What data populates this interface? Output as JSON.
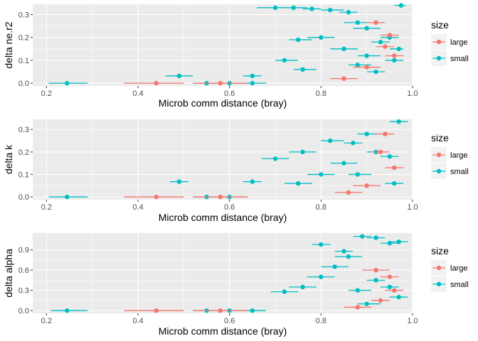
{
  "colors": {
    "large": "#F8766D",
    "small": "#00BFC4",
    "panel_bg": "#EBEBEB",
    "grid": "#FFFFFF"
  },
  "legend": {
    "title": "size",
    "entries": [
      "large",
      "small"
    ]
  },
  "chart_data": [
    {
      "type": "scatter",
      "xlabel": "Microb comm distance (bray)",
      "ylabel": "delta ne.r2",
      "xlim": [
        0.17,
        1.0
      ],
      "ylim": [
        -0.012,
        0.345
      ],
      "xticks": [
        0.2,
        0.4,
        0.6,
        0.8,
        1.0
      ],
      "xtick_labels": [
        "0.2",
        "0.4",
        "0.6",
        "0.8",
        "1.0"
      ],
      "yticks": [
        0.0,
        0.1,
        0.2,
        0.3
      ],
      "ytick_labels": [
        "0.0",
        "0.1",
        "0.2",
        "0.3"
      ],
      "series": [
        {
          "name": "small",
          "points": [
            {
              "x": 0.245,
              "xmin": 0.205,
              "xmax": 0.29,
              "y": 0.0
            },
            {
              "x": 0.49,
              "xmin": 0.46,
              "xmax": 0.52,
              "y": 0.032
            },
            {
              "x": 0.65,
              "xmin": 0.63,
              "xmax": 0.67,
              "y": 0.032
            },
            {
              "x": 0.7,
              "xmin": 0.66,
              "xmax": 0.74,
              "y": 0.33
            },
            {
              "x": 0.74,
              "xmin": 0.72,
              "xmax": 0.77,
              "y": 0.33
            },
            {
              "x": 0.78,
              "xmin": 0.76,
              "xmax": 0.8,
              "y": 0.325
            },
            {
              "x": 0.82,
              "xmin": 0.8,
              "xmax": 0.85,
              "y": 0.32
            },
            {
              "x": 0.86,
              "xmin": 0.84,
              "xmax": 0.88,
              "y": 0.31
            },
            {
              "x": 0.88,
              "xmin": 0.85,
              "xmax": 0.9,
              "y": 0.265
            },
            {
              "x": 0.9,
              "xmin": 0.87,
              "xmax": 0.93,
              "y": 0.24
            },
            {
              "x": 0.8,
              "xmin": 0.77,
              "xmax": 0.83,
              "y": 0.2
            },
            {
              "x": 0.75,
              "xmin": 0.73,
              "xmax": 0.78,
              "y": 0.19
            },
            {
              "x": 0.72,
              "xmin": 0.7,
              "xmax": 0.75,
              "y": 0.1
            },
            {
              "x": 0.76,
              "xmin": 0.74,
              "xmax": 0.79,
              "y": 0.06
            },
            {
              "x": 0.55,
              "xmin": 0.52,
              "xmax": 0.58,
              "y": 0.0
            },
            {
              "x": 0.6,
              "xmin": 0.57,
              "xmax": 0.63,
              "y": 0.0
            },
            {
              "x": 0.65,
              "xmin": 0.62,
              "xmax": 0.68,
              "y": 0.0
            },
            {
              "x": 0.85,
              "xmin": 0.82,
              "xmax": 0.88,
              "y": 0.15
            },
            {
              "x": 0.9,
              "xmin": 0.88,
              "xmax": 0.93,
              "y": 0.12
            },
            {
              "x": 0.93,
              "xmin": 0.91,
              "xmax": 0.95,
              "y": 0.18
            },
            {
              "x": 0.95,
              "xmin": 0.93,
              "xmax": 0.97,
              "y": 0.2
            },
            {
              "x": 0.97,
              "xmin": 0.95,
              "xmax": 0.98,
              "y": 0.15
            },
            {
              "x": 0.975,
              "xmin": 0.96,
              "xmax": 0.985,
              "y": 0.34
            },
            {
              "x": 0.88,
              "xmin": 0.86,
              "xmax": 0.91,
              "y": 0.08
            },
            {
              "x": 0.92,
              "xmin": 0.9,
              "xmax": 0.94,
              "y": 0.05
            },
            {
              "x": 0.96,
              "xmin": 0.94,
              "xmax": 0.98,
              "y": 0.1
            }
          ]
        },
        {
          "name": "large",
          "points": [
            {
              "x": 0.44,
              "xmin": 0.37,
              "xmax": 0.5,
              "y": 0.0
            },
            {
              "x": 0.58,
              "xmin": 0.52,
              "xmax": 0.64,
              "y": 0.0
            },
            {
              "x": 0.92,
              "xmin": 0.9,
              "xmax": 0.94,
              "y": 0.265
            },
            {
              "x": 0.95,
              "xmin": 0.93,
              "xmax": 0.97,
              "y": 0.21
            },
            {
              "x": 0.94,
              "xmin": 0.92,
              "xmax": 0.96,
              "y": 0.16
            },
            {
              "x": 0.96,
              "xmin": 0.94,
              "xmax": 0.98,
              "y": 0.12
            },
            {
              "x": 0.9,
              "xmin": 0.87,
              "xmax": 0.93,
              "y": 0.07
            },
            {
              "x": 0.85,
              "xmin": 0.82,
              "xmax": 0.88,
              "y": 0.02
            }
          ]
        }
      ]
    },
    {
      "type": "scatter",
      "xlabel": "Microb comm distance (bray)",
      "ylabel": "delta k",
      "xlim": [
        0.17,
        1.0
      ],
      "ylim": [
        -0.012,
        0.345
      ],
      "xticks": [
        0.2,
        0.4,
        0.6,
        0.8,
        1.0
      ],
      "xtick_labels": [
        "0.2",
        "0.4",
        "0.6",
        "0.8",
        "1.0"
      ],
      "yticks": [
        0.0,
        0.1,
        0.2,
        0.3
      ],
      "ytick_labels": [
        "0.0",
        "0.1",
        "0.2",
        "0.3"
      ],
      "series": [
        {
          "name": "small",
          "points": [
            {
              "x": 0.245,
              "xmin": 0.205,
              "xmax": 0.29,
              "y": 0.0
            },
            {
              "x": 0.49,
              "xmin": 0.47,
              "xmax": 0.51,
              "y": 0.068
            },
            {
              "x": 0.65,
              "xmin": 0.63,
              "xmax": 0.67,
              "y": 0.068
            },
            {
              "x": 0.7,
              "xmin": 0.67,
              "xmax": 0.73,
              "y": 0.17
            },
            {
              "x": 0.76,
              "xmin": 0.73,
              "xmax": 0.79,
              "y": 0.2
            },
            {
              "x": 0.82,
              "xmin": 0.8,
              "xmax": 0.85,
              "y": 0.25
            },
            {
              "x": 0.87,
              "xmin": 0.85,
              "xmax": 0.89,
              "y": 0.24
            },
            {
              "x": 0.9,
              "xmin": 0.88,
              "xmax": 0.92,
              "y": 0.28
            },
            {
              "x": 0.97,
              "xmin": 0.95,
              "xmax": 0.99,
              "y": 0.335
            },
            {
              "x": 0.8,
              "xmin": 0.77,
              "xmax": 0.83,
              "y": 0.1
            },
            {
              "x": 0.75,
              "xmin": 0.72,
              "xmax": 0.78,
              "y": 0.06
            },
            {
              "x": 0.55,
              "xmin": 0.52,
              "xmax": 0.58,
              "y": 0.0
            },
            {
              "x": 0.6,
              "xmin": 0.57,
              "xmax": 0.63,
              "y": 0.0
            },
            {
              "x": 0.85,
              "xmin": 0.82,
              "xmax": 0.88,
              "y": 0.15
            },
            {
              "x": 0.92,
              "xmin": 0.9,
              "xmax": 0.94,
              "y": 0.2
            },
            {
              "x": 0.95,
              "xmin": 0.93,
              "xmax": 0.97,
              "y": 0.18
            },
            {
              "x": 0.88,
              "xmin": 0.86,
              "xmax": 0.91,
              "y": 0.1
            },
            {
              "x": 0.96,
              "xmin": 0.94,
              "xmax": 0.98,
              "y": 0.06
            }
          ]
        },
        {
          "name": "large",
          "points": [
            {
              "x": 0.44,
              "xmin": 0.37,
              "xmax": 0.5,
              "y": 0.0
            },
            {
              "x": 0.58,
              "xmin": 0.52,
              "xmax": 0.64,
              "y": 0.0
            },
            {
              "x": 0.94,
              "xmin": 0.92,
              "xmax": 0.96,
              "y": 0.28
            },
            {
              "x": 0.93,
              "xmin": 0.91,
              "xmax": 0.95,
              "y": 0.2
            },
            {
              "x": 0.96,
              "xmin": 0.94,
              "xmax": 0.98,
              "y": 0.13
            },
            {
              "x": 0.9,
              "xmin": 0.87,
              "xmax": 0.93,
              "y": 0.05
            },
            {
              "x": 0.86,
              "xmin": 0.83,
              "xmax": 0.89,
              "y": 0.02
            }
          ]
        }
      ]
    },
    {
      "type": "scatter",
      "xlabel": "Microb comm distance (bray)",
      "ylabel": "delta alpha",
      "xlim": [
        0.17,
        1.0
      ],
      "ylim": [
        -0.04,
        1.15
      ],
      "xticks": [
        0.2,
        0.4,
        0.6,
        0.8,
        1.0
      ],
      "xtick_labels": [
        "0.2",
        "0.4",
        "0.6",
        "0.8",
        "1.0"
      ],
      "yticks": [
        0.0,
        0.3,
        0.6,
        0.9
      ],
      "ytick_labels": [
        "0.0",
        "0.3",
        "0.6",
        "0.9"
      ],
      "series": [
        {
          "name": "small",
          "points": [
            {
              "x": 0.245,
              "xmin": 0.21,
              "xmax": 0.29,
              "y": 0.0
            },
            {
              "x": 0.8,
              "xmin": 0.78,
              "xmax": 0.82,
              "y": 0.98
            },
            {
              "x": 0.85,
              "xmin": 0.83,
              "xmax": 0.87,
              "y": 0.88
            },
            {
              "x": 0.89,
              "xmin": 0.87,
              "xmax": 0.91,
              "y": 1.1
            },
            {
              "x": 0.92,
              "xmin": 0.9,
              "xmax": 0.94,
              "y": 1.08
            },
            {
              "x": 0.95,
              "xmin": 0.93,
              "xmax": 0.97,
              "y": 1.0
            },
            {
              "x": 0.97,
              "xmin": 0.95,
              "xmax": 0.99,
              "y": 1.02
            },
            {
              "x": 0.72,
              "xmin": 0.69,
              "xmax": 0.75,
              "y": 0.28
            },
            {
              "x": 0.76,
              "xmin": 0.73,
              "xmax": 0.79,
              "y": 0.35
            },
            {
              "x": 0.8,
              "xmin": 0.77,
              "xmax": 0.83,
              "y": 0.5
            },
            {
              "x": 0.83,
              "xmin": 0.8,
              "xmax": 0.86,
              "y": 0.65
            },
            {
              "x": 0.86,
              "xmin": 0.83,
              "xmax": 0.89,
              "y": 0.8
            },
            {
              "x": 0.55,
              "xmin": 0.52,
              "xmax": 0.58,
              "y": 0.0
            },
            {
              "x": 0.6,
              "xmin": 0.57,
              "xmax": 0.63,
              "y": 0.0
            },
            {
              "x": 0.65,
              "xmin": 0.62,
              "xmax": 0.68,
              "y": 0.0
            },
            {
              "x": 0.88,
              "xmin": 0.86,
              "xmax": 0.91,
              "y": 0.3
            },
            {
              "x": 0.92,
              "xmin": 0.9,
              "xmax": 0.94,
              "y": 0.45
            },
            {
              "x": 0.95,
              "xmin": 0.93,
              "xmax": 0.97,
              "y": 0.35
            },
            {
              "x": 0.97,
              "xmin": 0.95,
              "xmax": 0.99,
              "y": 0.2
            },
            {
              "x": 0.9,
              "xmin": 0.88,
              "xmax": 0.93,
              "y": 0.1
            }
          ]
        },
        {
          "name": "large",
          "points": [
            {
              "x": 0.44,
              "xmin": 0.37,
              "xmax": 0.5,
              "y": 0.0
            },
            {
              "x": 0.58,
              "xmin": 0.52,
              "xmax": 0.64,
              "y": 0.0
            },
            {
              "x": 0.92,
              "xmin": 0.89,
              "xmax": 0.95,
              "y": 0.6
            },
            {
              "x": 0.95,
              "xmin": 0.93,
              "xmax": 0.97,
              "y": 0.5
            },
            {
              "x": 0.96,
              "xmin": 0.94,
              "xmax": 0.98,
              "y": 0.3
            },
            {
              "x": 0.93,
              "xmin": 0.91,
              "xmax": 0.95,
              "y": 0.15
            },
            {
              "x": 0.88,
              "xmin": 0.85,
              "xmax": 0.91,
              "y": 0.05
            }
          ]
        }
      ]
    }
  ]
}
